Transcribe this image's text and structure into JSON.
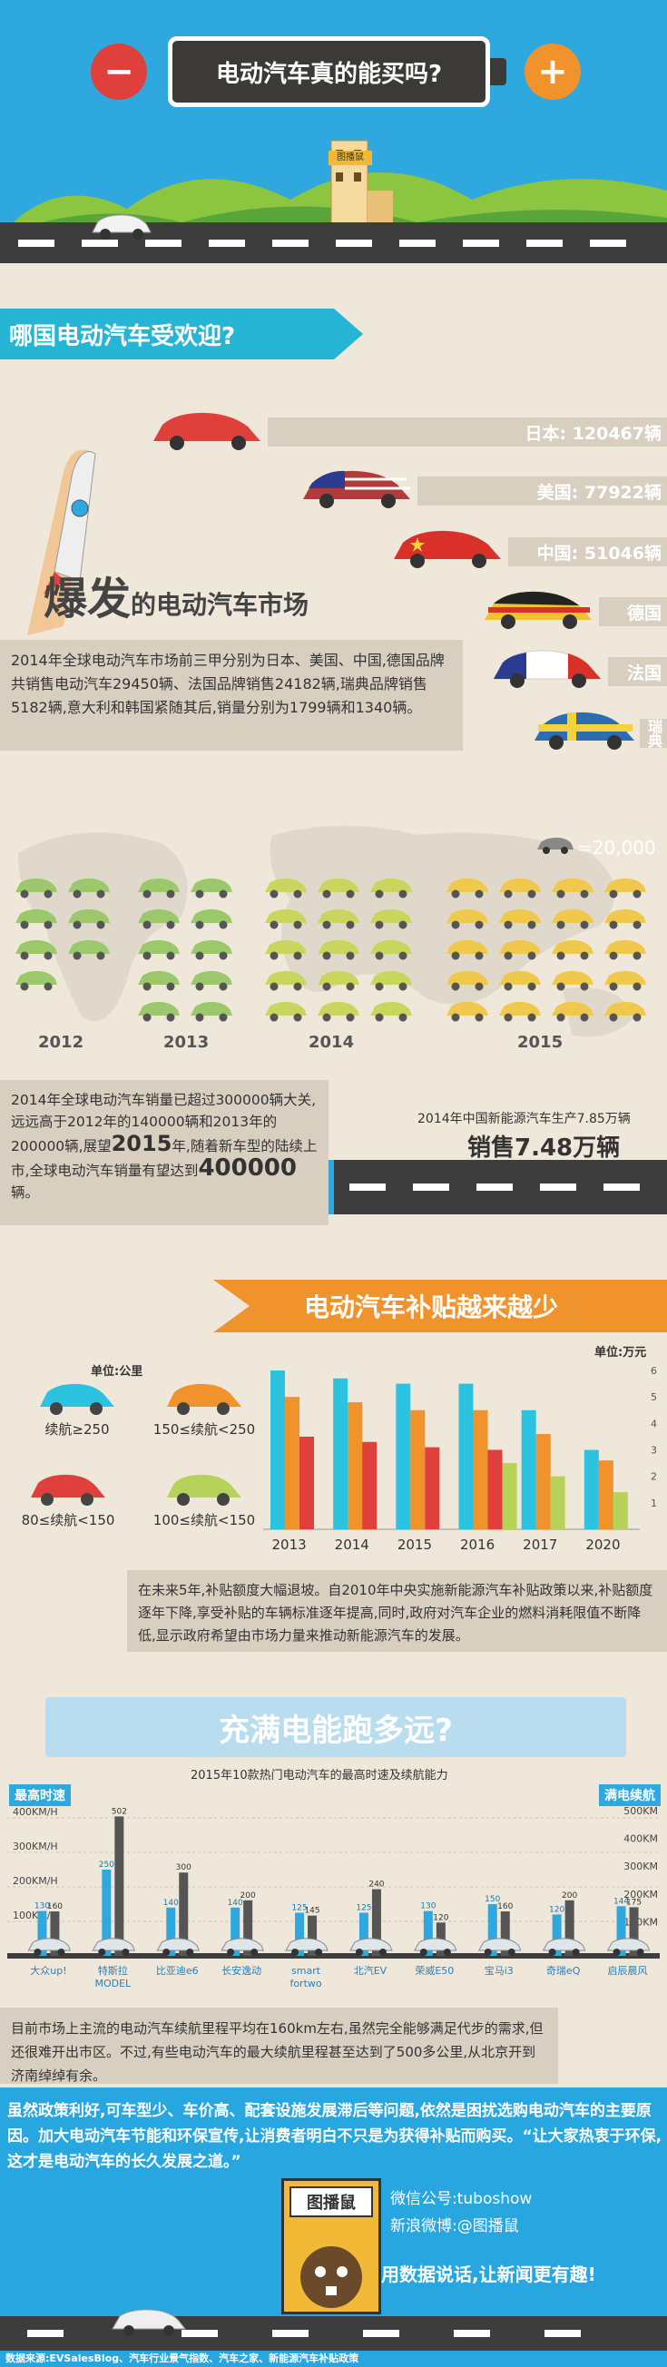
{
  "header": {
    "title": "电动汽车真的能买吗?",
    "minus": "−",
    "plus": "+",
    "building_label": "图播鼠"
  },
  "section1": {
    "heading": "哪国电动汽车受欢迎?",
    "countries": [
      {
        "label": "日本: 120467辆"
      },
      {
        "label": "美国: 77922辆"
      },
      {
        "label": "中国: 51046辆"
      },
      {
        "label": "德国"
      },
      {
        "label": "法国"
      },
      {
        "label": "瑞典"
      }
    ],
    "market_title_big": "爆发",
    "market_title_rest": "的电动汽车市场",
    "market_text": "2014年全球电动汽车市场前三甲分别为日本、美国、中国,德国品牌共销售电动汽车29450辆、法国品牌销售24182辆,瑞典品牌销售5182辆,意大利和韩国紧随其后,销量分别为1799辆和1340辆。"
  },
  "section2": {
    "legend": "=20,000",
    "years": [
      "2012",
      "2013",
      "2014",
      "2015"
    ],
    "text_1": "2014年全球电动汽车销量已超过300000辆大关,远远高于2012年的140000辆和2013年的200000辆,展望",
    "text_year": "2015",
    "text_2": "年,随着新车型的陆续上市,全球电动汽车销量有望达到",
    "text_big": "400000",
    "text_3": "辆。",
    "china_small": "2014年中国新能源汽车生产7.85万辆",
    "china_big": "销售7.48万辆"
  },
  "section3": {
    "heading": "电动汽车补贴越来越少",
    "unit_left": "单位:公里",
    "unit_right": "单位:万元",
    "legend": [
      {
        "label": "续航≥250",
        "color": "#2cc3e0"
      },
      {
        "label": "150≤续航<250",
        "color": "#f0932d"
      },
      {
        "label": "80≤续航<150",
        "color": "#e0403c"
      },
      {
        "label": "100≤续航<150",
        "color": "#b6d25a"
      }
    ],
    "text": "在未来5年,补贴额度大幅退坡。自2010年中央实施新能源汽车补贴政策以来,补贴额度逐年下降,享受补贴的车辆标准逐年提高,同时,政府对汽车企业的燃料消耗限值不断降低,显示政府希望由市场力量来推动新能源汽车的发展。"
  },
  "section4": {
    "heading": "充满电能跑多远?",
    "subtitle": "2015年10款热门电动汽车的最高时速及续航能力",
    "left_label": "最高时速",
    "right_label": "满电续航",
    "left_ticks": [
      "400KM/H",
      "300KM/H",
      "200KM/H",
      "100KM/H"
    ],
    "right_ticks": [
      "500KM",
      "400KM",
      "300KM",
      "200KM",
      "100KM"
    ],
    "text": "目前市场上主流的电动汽车续航里程平均在160km左右,虽然完全能够满足代步的需求,但还很难开出市区。不过,有些电动汽车的最大续航里程甚至达到了500多公里,从北京开到济南绰绰有余。"
  },
  "footer": {
    "text": "虽然政策利好,可车型少、车价高、配套设施发展滞后等问题,依然是困扰选购电动汽车的主要原因。加大电动汽车节能和环保宣传,让消费者明白不只是为获得补贴而购买。“让大家热衷于环保,这才是电动汽车的长久发展之道。”",
    "brand": "图播鼠",
    "wechat": "微信公号:tuboshow",
    "weibo": "新浪微博:@图播鼠",
    "slogan": "用数据说话,让新闻更有趣!",
    "source": "数据来源:EVSalesBlog、汽车行业景气指数、汽车之家、新能源汽车补贴政策"
  },
  "chart_data": [
    {
      "type": "bar",
      "title": "",
      "unit": "单位:万元",
      "categories": [
        "2013",
        "2014",
        "2015",
        "2016",
        "2017",
        "2020"
      ],
      "ylim": [
        0,
        6
      ],
      "yticks": [
        "6",
        "5",
        "4",
        "3",
        "2",
        "1"
      ],
      "series": [
        {
          "name": "续航≥250",
          "color": "#2cc3e0",
          "values": [
            6,
            5.7,
            5.5,
            5.5,
            4.5,
            3
          ]
        },
        {
          "name": "150≤续航<250",
          "color": "#f0932d",
          "values": [
            5,
            4.8,
            4.5,
            4.5,
            3.6,
            2.6
          ]
        },
        {
          "name": "80≤续航<150",
          "color": "#e0403c",
          "values": [
            3.5,
            3.3,
            3.1,
            3.0,
            null,
            null
          ]
        },
        {
          "name": "100≤续航<150",
          "color": "#b6d25a",
          "values": [
            null,
            null,
            null,
            2.5,
            2.0,
            1.4
          ]
        }
      ]
    },
    {
      "type": "bar",
      "title": "2015年10款热门电动汽车的最高时速及续航能力",
      "categories": [
        "大众up!",
        "特斯拉 MODEL S",
        "比亚迪e6",
        "长安逸动",
        "smart fortwo",
        "北汽EV",
        "荣威E50",
        "宝马i3",
        "奇瑞eQ",
        "启辰晨风"
      ],
      "series": [
        {
          "name": "最高时速",
          "values": [
            130,
            250,
            140,
            140,
            125,
            125,
            130,
            150,
            120,
            144
          ]
        },
        {
          "name": "满电续航",
          "values": [
            160,
            502,
            300,
            200,
            145,
            240,
            120,
            160,
            200,
            175
          ]
        }
      ]
    }
  ]
}
